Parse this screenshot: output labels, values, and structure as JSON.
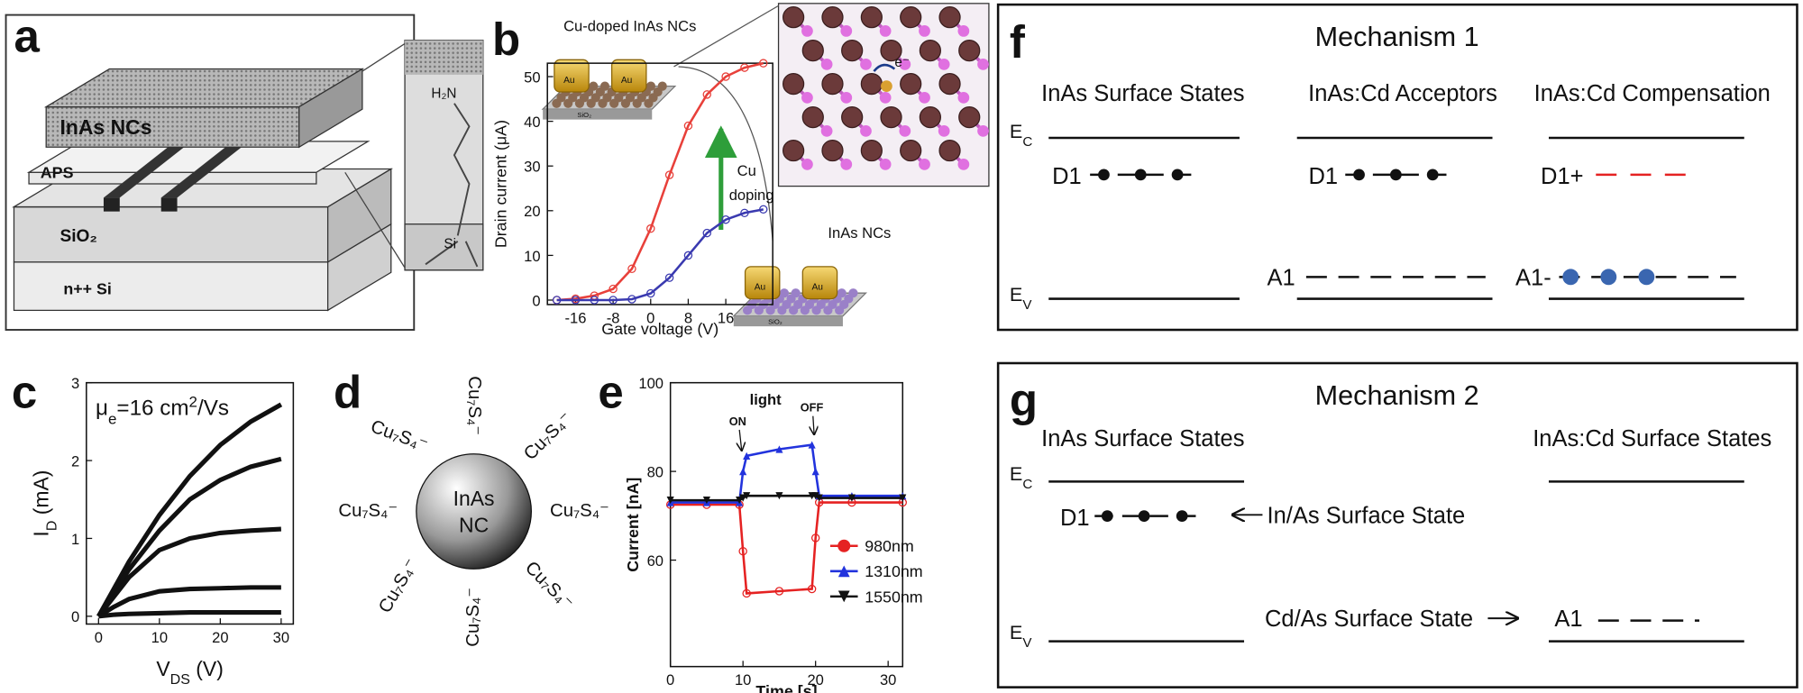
{
  "panel_labels": [
    "a",
    "b",
    "c",
    "d",
    "e",
    "f",
    "g"
  ],
  "panel_a": {
    "layers": [
      "InAs NCs",
      "APS",
      "SiO₂",
      "n++ Si"
    ],
    "inset": [
      "H₂N",
      "Si"
    ]
  },
  "panel_b": {
    "top_inset": "Cu-doped InAs NCs",
    "bottom_inset": "InAs NCs",
    "electrode": "Au",
    "substrate": "SiO₂",
    "arrow_label": [
      "Cu",
      "doping"
    ],
    "electron": "e⁻"
  },
  "panel_d": {
    "core": [
      "InAs",
      "NC"
    ],
    "ligand": "Cu₇S₄⁻"
  },
  "panel_e": {
    "light": "light",
    "on": "ON",
    "off": "OFF"
  },
  "panel_f": {
    "title": "Mechanism 1",
    "headers": [
      "InAs Surface States",
      "InAs:Cd Acceptors",
      "InAs:Cd Compensation"
    ],
    "ec": [
      "E",
      "C"
    ],
    "ev": [
      "E",
      "V"
    ],
    "levels": [
      "D1",
      "D1",
      "D1+",
      "A1",
      "A1-"
    ]
  },
  "panel_g": {
    "title": "Mechanism 2",
    "headers": [
      "InAs Surface States",
      "InAs:Cd Surface States"
    ],
    "ec": [
      "E",
      "C"
    ],
    "ev": [
      "E",
      "V"
    ],
    "levels": [
      "D1",
      "A1"
    ],
    "notes": [
      "In/As Surface State",
      "Cd/As Surface State"
    ]
  },
  "chart_data": [
    {
      "type": "line",
      "xlabel": [
        "Gate voltage (V)"
      ],
      "ylabel": [
        "Drain current (μA)"
      ],
      "xlim": [
        -22,
        26
      ],
      "ylim": [
        -1,
        53
      ],
      "xticks": [
        -16,
        -8,
        0,
        8,
        16
      ],
      "yticks": [
        0,
        10,
        20,
        30,
        40,
        50
      ],
      "x": [
        -20,
        -16,
        -12,
        -8,
        -4,
        0,
        4,
        8,
        12,
        16,
        20,
        24
      ],
      "series": [
        {
          "color": "#e8403a",
          "marker": "circle",
          "values": [
            0,
            0.3,
            1,
            2.5,
            7,
            16,
            28,
            39,
            46,
            50,
            52,
            53
          ]
        },
        {
          "color": "#3a3ab0",
          "marker": "circle",
          "values": [
            0,
            0,
            0,
            0,
            0.2,
            1.5,
            5,
            10,
            15,
            18,
            19.5,
            20.3
          ]
        }
      ]
    },
    {
      "type": "line",
      "xlabel": [
        "V",
        "DS",
        " (V)"
      ],
      "ylabel": [
        "I",
        "D",
        "  (mA)"
      ],
      "annotation": [
        "μ",
        "e",
        "=16 cm",
        "2",
        "/Vs"
      ],
      "xlim": [
        -2,
        32
      ],
      "ylim": [
        -0.1,
        3
      ],
      "xticks": [
        0,
        10,
        20,
        30
      ],
      "yticks": [
        0,
        1,
        2,
        3
      ],
      "x": [
        0,
        2.5,
        5,
        10,
        15,
        20,
        25,
        30
      ],
      "series": [
        {
          "color": "#111111",
          "values": [
            0,
            0.35,
            0.7,
            1.3,
            1.8,
            2.2,
            2.5,
            2.72
          ]
        },
        {
          "color": "#111111",
          "values": [
            0,
            0.3,
            0.6,
            1.1,
            1.5,
            1.75,
            1.92,
            2.02
          ]
        },
        {
          "color": "#111111",
          "values": [
            0,
            0.25,
            0.5,
            0.85,
            1.0,
            1.07,
            1.1,
            1.12
          ]
        },
        {
          "color": "#111111",
          "values": [
            0,
            0.12,
            0.22,
            0.32,
            0.35,
            0.36,
            0.37,
            0.37
          ]
        },
        {
          "color": "#111111",
          "values": [
            0,
            0.02,
            0.03,
            0.04,
            0.05,
            0.05,
            0.05,
            0.05
          ]
        }
      ]
    },
    {
      "type": "line",
      "xlabel": [
        "Time [s]"
      ],
      "ylabel": [
        "Current [nA]"
      ],
      "xlim": [
        0,
        32
      ],
      "ylim": [
        36,
        100
      ],
      "xticks": [
        0,
        10,
        20,
        30
      ],
      "yticks": [
        60,
        80,
        100
      ],
      "x": [
        0,
        5,
        9.5,
        10,
        10.5,
        15,
        19.5,
        20,
        20.5,
        25,
        32
      ],
      "series": [
        {
          "name": "980nm",
          "color": "#e52222",
          "marker": "circle",
          "values": [
            72.5,
            72.5,
            72.5,
            62,
            52.5,
            53,
            53.5,
            65,
            73,
            73,
            73
          ]
        },
        {
          "name": "1310nm",
          "color": "#2233dd",
          "marker": "triangle",
          "values": [
            73,
            73,
            73,
            80,
            83.5,
            85,
            86,
            80,
            74.5,
            74.5,
            74.5
          ]
        },
        {
          "name": "1550nm",
          "color": "#111111",
          "marker": "triangle-down",
          "values": [
            73.5,
            73.5,
            73.5,
            74,
            74.5,
            74.5,
            74.5,
            74.5,
            74,
            74,
            74
          ]
        }
      ]
    }
  ]
}
